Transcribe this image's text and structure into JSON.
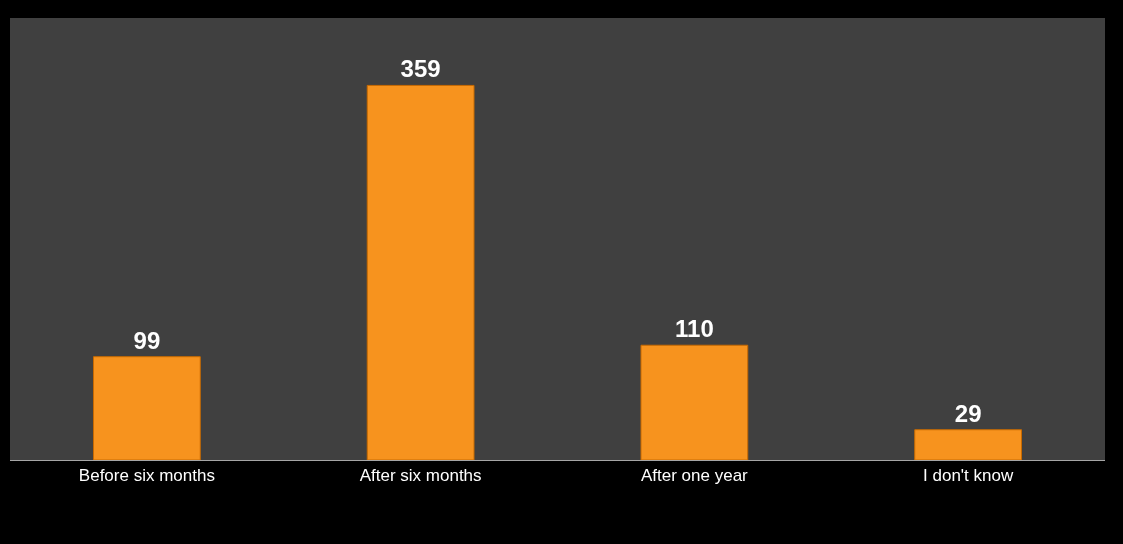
{
  "chart_data": {
    "type": "bar",
    "categories": [
      "Before six months",
      "After six months",
      "After one year",
      "I don't know"
    ],
    "values": [
      99,
      359,
      110,
      29
    ],
    "color": "#f7931e",
    "data_labels": true,
    "grid": false,
    "legend": false
  }
}
